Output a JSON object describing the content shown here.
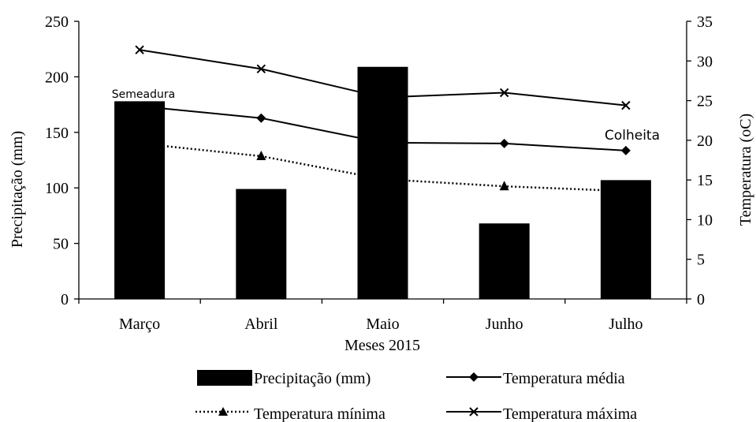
{
  "chart_data": {
    "type": "bar",
    "categories": [
      "Março",
      "Abril",
      "Maio",
      "Junho",
      "Julho"
    ],
    "xlabel": "Meses 2015",
    "ylabel": "Precipitação (mm)",
    "y2label": "Temperatura (oC)",
    "ylim": [
      0,
      250
    ],
    "y2lim": [
      0,
      35
    ],
    "yticks": [
      "0",
      "50",
      "100",
      "150",
      "200",
      "250"
    ],
    "y2ticks": [
      "0",
      "5",
      "10",
      "15",
      "20",
      "25",
      "30",
      "35"
    ],
    "grid": false,
    "legend_position": "bottom",
    "series": [
      {
        "name": "Precipitação (mm)",
        "kind": "bar",
        "axis": "left",
        "values": [
          178,
          99,
          209,
          68,
          107
        ]
      },
      {
        "name": "Temperatura média",
        "kind": "line",
        "marker": "diamond",
        "line_style": "solid",
        "axis": "right",
        "values": [
          24.3,
          22.8,
          19.7,
          19.6,
          18.7
        ]
      },
      {
        "name": "Temperatura mínima",
        "kind": "line",
        "marker": "triangle",
        "line_style": "dotted",
        "axis": "right",
        "values": [
          19.6,
          18.0,
          15.1,
          14.2,
          13.6
        ]
      },
      {
        "name": "Temperatura máxima",
        "kind": "line",
        "marker": "x",
        "line_style": "solid",
        "axis": "right",
        "values": [
          31.4,
          29.0,
          25.4,
          26.0,
          24.4
        ]
      }
    ],
    "annotations": [
      {
        "text": "Semeadura",
        "category": "Março"
      },
      {
        "text": "Colheita",
        "category": "Julho"
      }
    ],
    "colors": {
      "bar": "#000000",
      "line": "#000000",
      "background": "#ffffff"
    }
  }
}
